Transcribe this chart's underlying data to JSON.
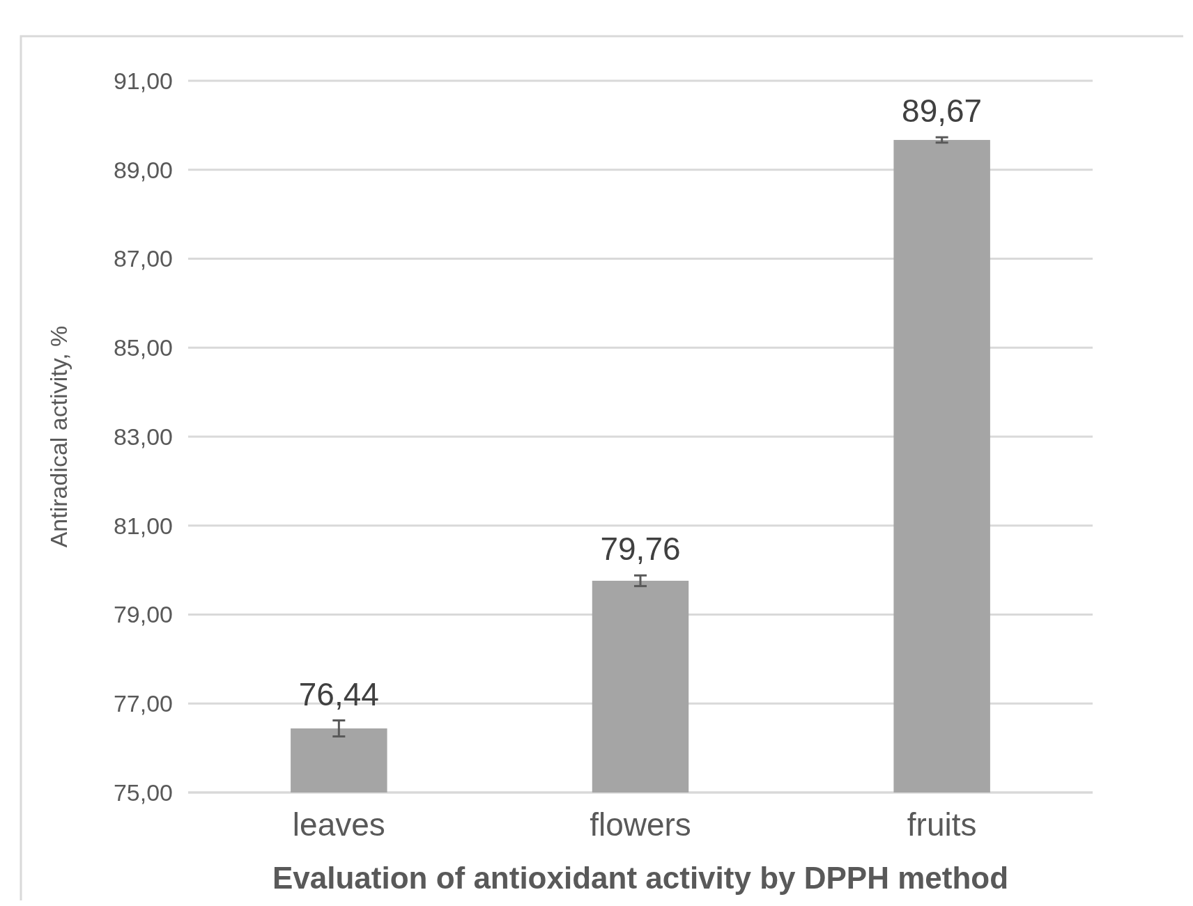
{
  "chart_data": {
    "type": "bar",
    "xlabel": "Evaluation of antioxidant activity by DPPH method",
    "ylabel": "Antiradical activity, %",
    "categories": [
      "leaves",
      "flowers",
      "fruits"
    ],
    "values": [
      76.44,
      79.76,
      89.67
    ],
    "color": "#a5a5a5",
    "errors": [
      0.18,
      0.12,
      0.06
    ],
    "value_labels": [
      "76,44",
      "79,76",
      "89,67"
    ],
    "ylim": [
      75,
      91
    ],
    "yticks": [
      {
        "value": 75,
        "label": "75,00"
      },
      {
        "value": 77,
        "label": "77,00"
      },
      {
        "value": 79,
        "label": "79,00"
      },
      {
        "value": 81,
        "label": "81,00"
      },
      {
        "value": 83,
        "label": "83,00"
      },
      {
        "value": 85,
        "label": "85,00"
      },
      {
        "value": 87,
        "label": "87,00"
      },
      {
        "value": 89,
        "label": "89,00"
      },
      {
        "value": 91,
        "label": "91,00"
      }
    ],
    "grid": "y"
  }
}
